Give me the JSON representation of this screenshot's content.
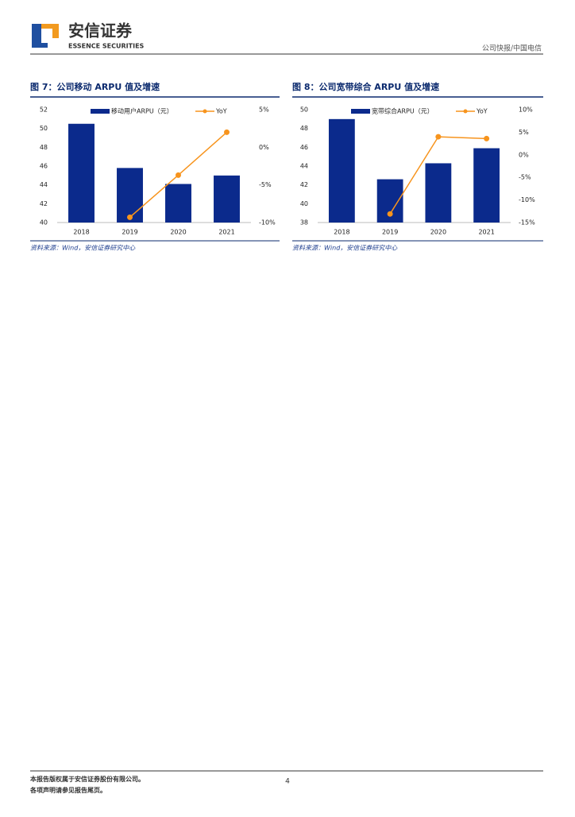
{
  "header": {
    "logo_cn": "安信证券",
    "logo_en": "ESSENCE SECURITIES",
    "section": "公司快报/中国电信"
  },
  "chart_data": [
    {
      "type": "bar",
      "title": "图 7：公司移动 ARPU 值及增速",
      "categories": [
        "2018",
        "2019",
        "2020",
        "2021"
      ],
      "series": [
        {
          "name": "移动用户ARPU（元）",
          "color": "#0b2a8c",
          "values": [
            50.5,
            45.8,
            44.1,
            45.0
          ]
        },
        {
          "name": "YoY",
          "color": "#f7941d",
          "axis": "y2",
          "values": [
            null,
            -9.3,
            -3.7,
            2.0
          ]
        }
      ],
      "ylim": [
        40,
        52
      ],
      "yticks": [
        40,
        42,
        44,
        46,
        48,
        50,
        52
      ],
      "y2lim": [
        -10,
        5
      ],
      "y2ticks": [
        {
          "value": -10,
          "label": "-10%"
        },
        {
          "value": -5,
          "label": "-5%"
        },
        {
          "value": 0,
          "label": "0%"
        },
        {
          "value": 5,
          "label": "5%"
        }
      ],
      "source": "资料来源：Wind，安信证券研究中心"
    },
    {
      "type": "bar",
      "title": "图 8：公司宽带综合 ARPU 值及增速",
      "categories": [
        "2018",
        "2019",
        "2020",
        "2021"
      ],
      "series": [
        {
          "name": "宽带综合ARPU（元）",
          "color": "#0b2a8c",
          "values": [
            49.0,
            42.6,
            44.3,
            45.9
          ]
        },
        {
          "name": "YoY",
          "color": "#f7941d",
          "axis": "y2",
          "values": [
            null,
            -13.1,
            4.0,
            3.6
          ]
        }
      ],
      "ylim": [
        38,
        50
      ],
      "yticks": [
        38,
        40,
        42,
        44,
        46,
        48,
        50
      ],
      "y2lim": [
        -15,
        10
      ],
      "y2ticks": [
        {
          "value": -15,
          "label": "-15%"
        },
        {
          "value": -10,
          "label": "-10%"
        },
        {
          "value": -5,
          "label": "-5%"
        },
        {
          "value": 0,
          "label": "0%"
        },
        {
          "value": 5,
          "label": "5%"
        },
        {
          "value": 10,
          "label": "10%"
        }
      ],
      "source": "资料来源：Wind，安信证券研究中心"
    }
  ],
  "footer": {
    "copyright": "本报告版权属于安信证券股份有限公司。",
    "notice": "各项声明请参见报告尾页。",
    "page": "4"
  }
}
